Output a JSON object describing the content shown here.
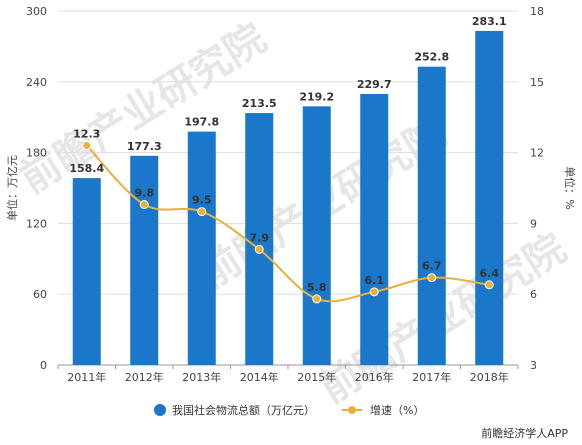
{
  "chart_data": {
    "type": "bar",
    "categories": [
      "2011年",
      "2012年",
      "2013年",
      "2014年",
      "2015年",
      "2016年",
      "2017年",
      "2018年"
    ],
    "series": [
      {
        "name": "我国社会物流总额（万亿元）",
        "type": "bar",
        "axis": "left",
        "color": "#1a77c9",
        "values": [
          158.4,
          177.3,
          197.8,
          213.5,
          219.2,
          229.7,
          252.8,
          283.1
        ]
      },
      {
        "name": "增速（%）",
        "type": "line",
        "axis": "right",
        "color": "#e7b23b",
        "values": [
          12.3,
          9.8,
          9.5,
          7.9,
          5.8,
          6.1,
          6.7,
          6.4
        ]
      }
    ],
    "ylabel": "单位：万亿元",
    "y2label": "单位：%",
    "ylim": [
      0,
      300
    ],
    "y2lim": [
      3,
      18
    ],
    "yticks": [
      0,
      60,
      120,
      180,
      240,
      300
    ],
    "y2ticks": [
      3,
      6,
      9,
      12,
      15,
      18
    ],
    "grid": true,
    "legend_position": "bottom"
  },
  "watermark": "前瞻产业研究院",
  "credit": "前瞻经济学人APP"
}
